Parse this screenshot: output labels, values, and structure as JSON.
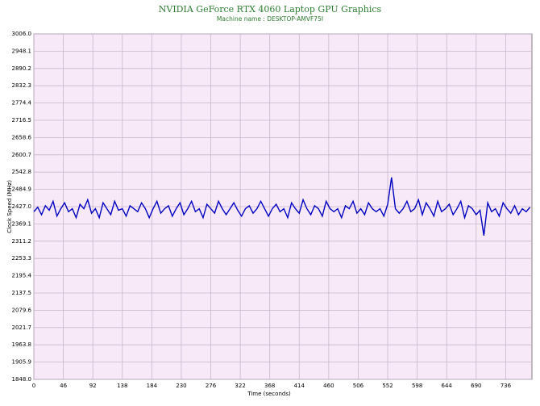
{
  "chart_data": {
    "type": "line",
    "title": "NVIDIA GeForce RTX 4060 Laptop GPU Graphics",
    "subtitle": "Machine name : DESKTOP-AMVF75I",
    "x_label": "Time (seconds)",
    "y_label": "Clock Speed (MHz)",
    "x": [
      0,
      6,
      12,
      18,
      24,
      30,
      36,
      42,
      48,
      54,
      60,
      66,
      72,
      78,
      84,
      90,
      96,
      102,
      108,
      114,
      120,
      126,
      132,
      138,
      144,
      150,
      156,
      162,
      168,
      174,
      180,
      186,
      192,
      198,
      204,
      210,
      216,
      222,
      228,
      234,
      240,
      246,
      252,
      258,
      264,
      270,
      276,
      282,
      288,
      294,
      300,
      306,
      312,
      318,
      324,
      330,
      336,
      342,
      348,
      354,
      360,
      366,
      372,
      378,
      384,
      390,
      396,
      402,
      408,
      414,
      420,
      426,
      432,
      438,
      444,
      450,
      456,
      462,
      468,
      474,
      480,
      486,
      492,
      498,
      504,
      510,
      516,
      522,
      528,
      534,
      540,
      546,
      552,
      558,
      564,
      570,
      576,
      582,
      588,
      594,
      600,
      606,
      612,
      618,
      624,
      630,
      636,
      642,
      648,
      654,
      660,
      666,
      672,
      678,
      684,
      690,
      696,
      702,
      708,
      714,
      720,
      726,
      732,
      738,
      744,
      750,
      756,
      762,
      768,
      774
    ],
    "series": [
      {
        "name": "Clock Speed",
        "color": "#0000c0",
        "values": [
          2410,
          2425,
          2400,
          2430,
          2415,
          2445,
          2395,
          2420,
          2440,
          2410,
          2420,
          2390,
          2435,
          2420,
          2450,
          2405,
          2420,
          2390,
          2440,
          2420,
          2400,
          2445,
          2415,
          2420,
          2395,
          2430,
          2420,
          2410,
          2440,
          2420,
          2390,
          2420,
          2445,
          2405,
          2420,
          2430,
          2395,
          2420,
          2440,
          2400,
          2420,
          2445,
          2410,
          2420,
          2390,
          2435,
          2420,
          2405,
          2445,
          2420,
          2400,
          2420,
          2440,
          2415,
          2395,
          2420,
          2430,
          2405,
          2420,
          2445,
          2420,
          2395,
          2420,
          2435,
          2410,
          2420,
          2390,
          2440,
          2420,
          2405,
          2450,
          2420,
          2400,
          2430,
          2420,
          2395,
          2445,
          2420,
          2410,
          2420,
          2390,
          2430,
          2420,
          2445,
          2405,
          2420,
          2400,
          2440,
          2420,
          2410,
          2420,
          2395,
          2435,
          2525,
          2420,
          2405,
          2420,
          2445,
          2410,
          2420,
          2450,
          2400,
          2440,
          2420,
          2395,
          2445,
          2410,
          2420,
          2435,
          2400,
          2420,
          2445,
          2390,
          2430,
          2420,
          2400,
          2415,
          2330,
          2440,
          2410,
          2420,
          2395,
          2440,
          2420,
          2405,
          2430,
          2400,
          2420,
          2410,
          2425
        ]
      }
    ],
    "xlim": [
      0,
      777
    ],
    "ylim": [
      1848,
      3006
    ],
    "xticks": [
      0,
      46,
      92,
      138,
      184,
      230,
      276,
      322,
      368,
      414,
      460,
      506,
      552,
      598,
      644,
      690,
      736
    ],
    "yticks": [
      {
        "value": 1848,
        "label": "1848.0"
      },
      {
        "value": 1905.9,
        "label": "1905.9"
      },
      {
        "value": 1963.8,
        "label": "1963.8"
      },
      {
        "value": 2021.7,
        "label": "2021.7"
      },
      {
        "value": 2079.6,
        "label": "2079.6"
      },
      {
        "value": 2137.5,
        "label": "2137.5"
      },
      {
        "value": 2195.4,
        "label": "2195.4"
      },
      {
        "value": 2253.3,
        "label": "2253.3"
      },
      {
        "value": 2311.2,
        "label": "2311.2"
      },
      {
        "value": 2369.1,
        "label": "2369.1"
      },
      {
        "value": 2427,
        "label": "2427.0"
      },
      {
        "value": 2484.9,
        "label": "2484.9"
      },
      {
        "value": 2542.8,
        "label": "2542.8"
      },
      {
        "value": 2600.7,
        "label": "2600.7"
      },
      {
        "value": 2658.6,
        "label": "2658.6"
      },
      {
        "value": 2716.5,
        "label": "2716.5"
      },
      {
        "value": 2774.4,
        "label": "2774.4"
      },
      {
        "value": 2832.3,
        "label": "2832.3"
      },
      {
        "value": 2890.2,
        "label": "2890.2"
      },
      {
        "value": 2948.1,
        "label": "2948.1"
      },
      {
        "value": 3006,
        "label": "3006.0"
      }
    ],
    "grid": true
  }
}
